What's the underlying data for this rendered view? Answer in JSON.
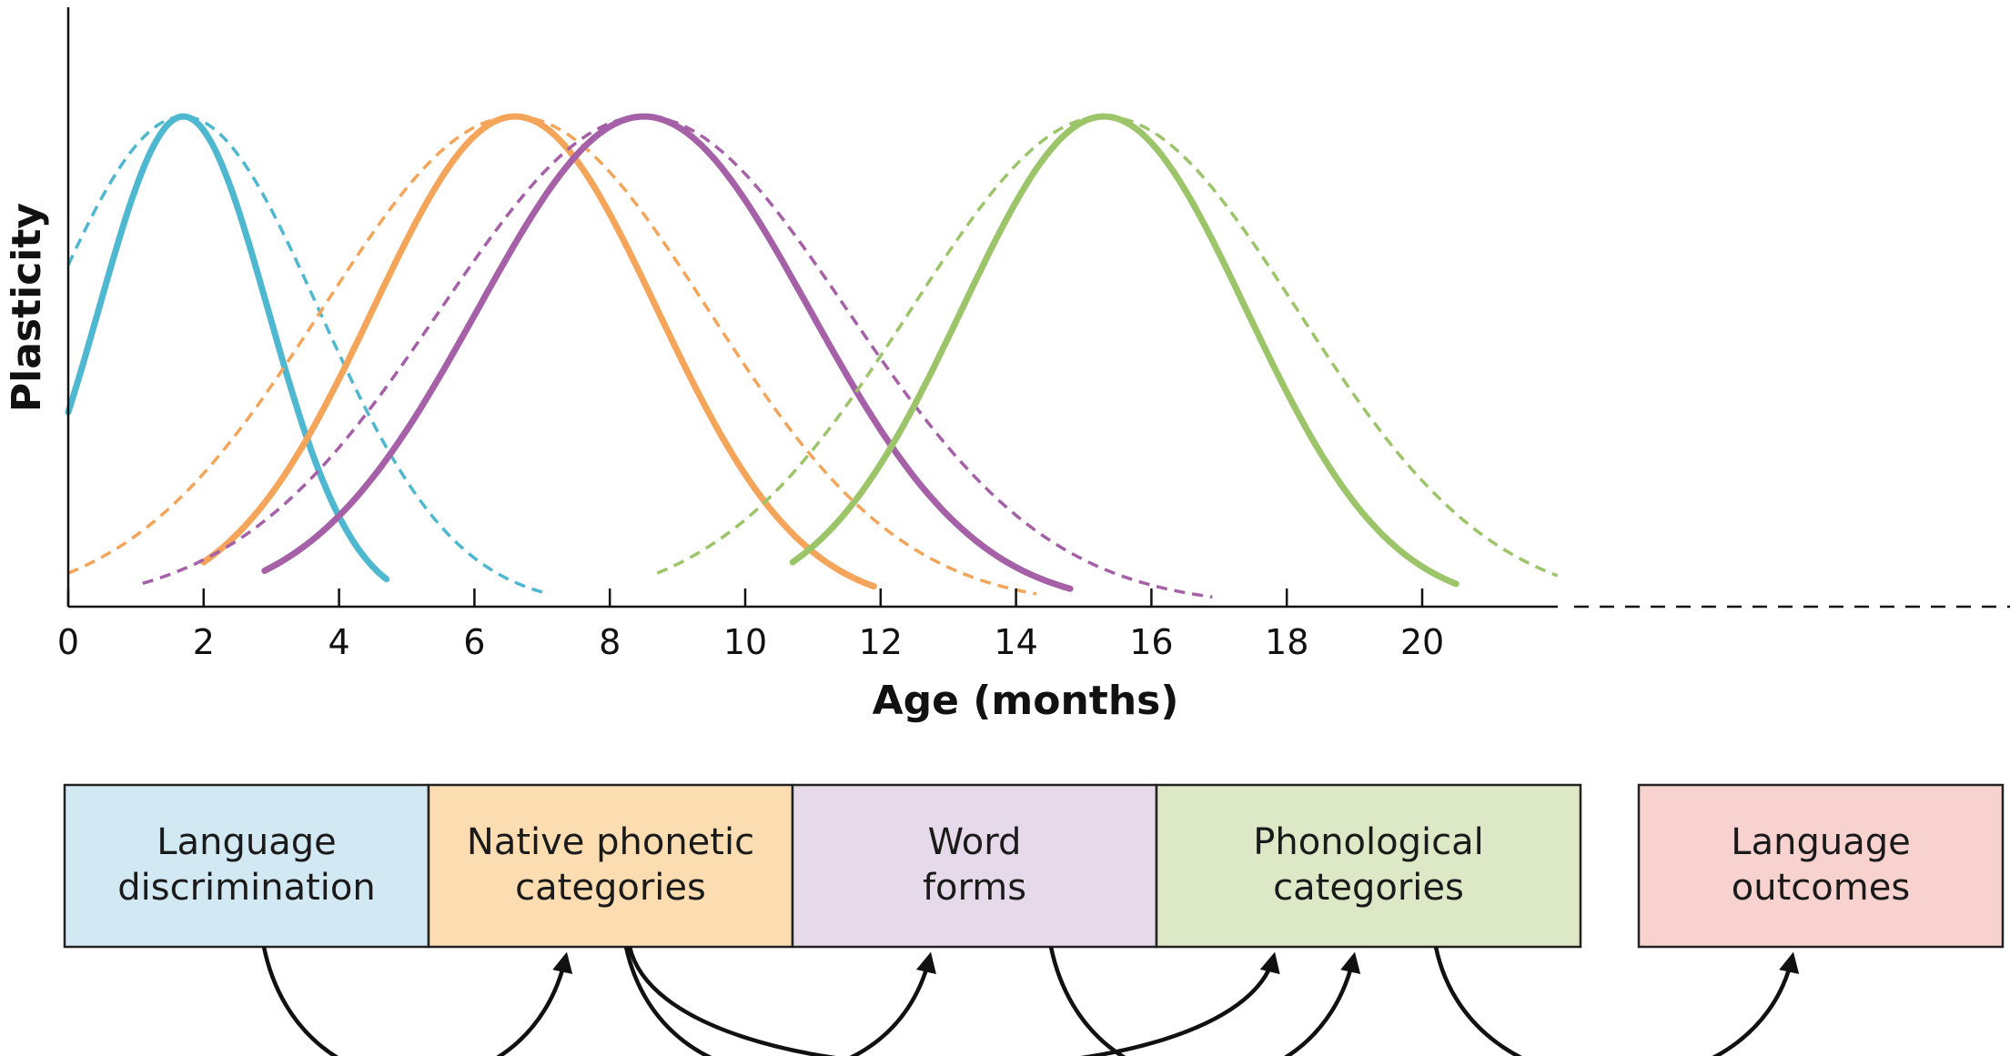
{
  "chart_data": {
    "type": "line",
    "xlabel": "Age (months)",
    "ylabel": "Plasticity",
    "xlim": [
      0,
      22
    ],
    "x_ticks": [
      "0",
      "2",
      "4",
      "6",
      "8",
      "10",
      "12",
      "14",
      "16",
      "18",
      "20"
    ],
    "axis_extends_dashed": true,
    "grid": false,
    "series": [
      {
        "color": "#4db8cf",
        "solid": {
          "start": 0.0,
          "end": 4.7,
          "peak": 1.7,
          "spread": 1.25
        },
        "dashed": {
          "start": 0.0,
          "end": 7.1,
          "peak": 1.7,
          "spread": 2.0
        }
      },
      {
        "color": "#f5a55a",
        "solid": {
          "start": 2.0,
          "end": 11.9,
          "peak": 6.6,
          "spread": 2.1
        },
        "dashed": {
          "start": 0.0,
          "end": 14.3,
          "peak": 6.6,
          "spread": 2.85
        }
      },
      {
        "color": "#a560a8",
        "solid": {
          "start": 2.9,
          "end": 14.8,
          "peak": 8.5,
          "spread": 2.45
        },
        "dashed": {
          "start": 1.1,
          "end": 16.9,
          "peak": 8.5,
          "spread": 3.0
        }
      },
      {
        "color": "#9cc56a",
        "solid": {
          "start": 10.7,
          "end": 20.5,
          "peak": 15.3,
          "spread": 2.1
        },
        "dashed": {
          "start": 8.7,
          "end": 22.0,
          "peak": 15.3,
          "spread": 2.85
        }
      }
    ]
  },
  "stages": [
    {
      "lines": [
        "Language",
        "discrimination"
      ],
      "fill": "#d2e8f2"
    },
    {
      "lines": [
        "Native phonetic",
        "categories"
      ],
      "fill": "#fcdcb1"
    },
    {
      "lines": [
        "Word",
        "forms"
      ],
      "fill": "#e6daea"
    },
    {
      "lines": [
        "Phonological",
        "categories"
      ],
      "fill": "#dde8c6"
    },
    {
      "lines": [
        "Language",
        "outcomes"
      ],
      "fill": "#f8d2cf"
    }
  ],
  "arrows": [
    {
      "from": 0,
      "to": 1
    },
    {
      "from": 1,
      "to": 2
    },
    {
      "from": 1,
      "to": 3
    },
    {
      "from": 2,
      "to": 3
    },
    {
      "from": 3,
      "to": 4
    }
  ]
}
